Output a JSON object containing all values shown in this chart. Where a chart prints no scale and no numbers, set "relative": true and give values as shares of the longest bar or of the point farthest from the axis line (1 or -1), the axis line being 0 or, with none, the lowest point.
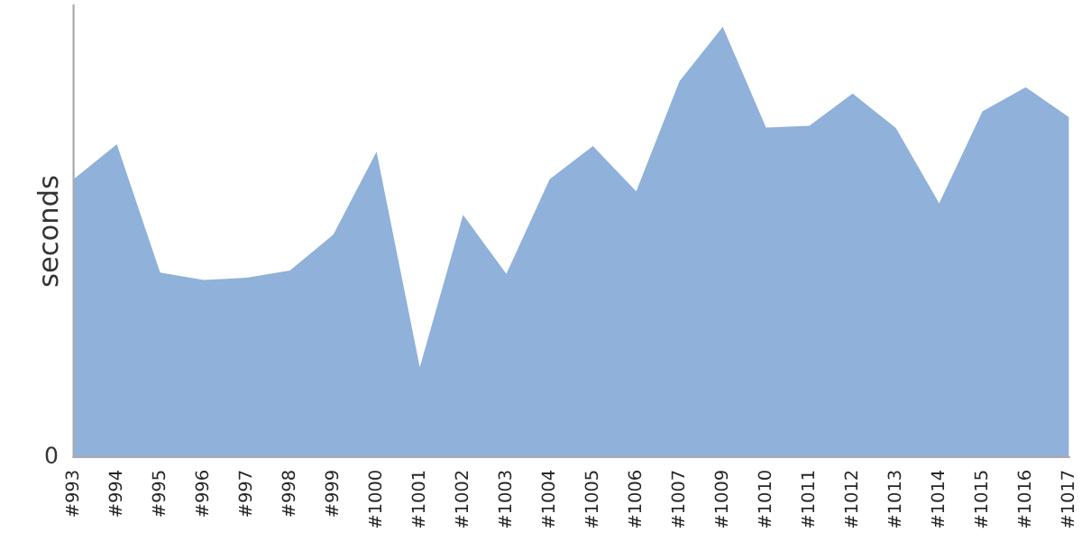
{
  "chart_data": {
    "type": "area",
    "ylabel": "seconds",
    "relative": true,
    "annotations": [
      "0"
    ],
    "categories": [
      "#993",
      "#994",
      "#995",
      "#996",
      "#997",
      "#998",
      "#999",
      "#1000",
      "#1001",
      "#1002",
      "#1003",
      "#1004",
      "#1005",
      "#1006",
      "#1007",
      "#1009",
      "#1010",
      "#1011",
      "#1012",
      "#1013",
      "#1014",
      "#1015",
      "#1016",
      "#1017"
    ],
    "series": [
      {
        "color": "#8fb1da",
        "values": [
          0.646,
          0.727,
          0.429,
          0.412,
          0.417,
          0.434,
          0.517,
          0.71,
          0.209,
          0.563,
          0.426,
          0.646,
          0.723,
          0.618,
          0.874,
          1,
          0.766,
          0.77,
          0.845,
          0.765,
          0.59,
          0.804,
          0.86,
          0.79
        ]
      }
    ],
    "grid": false,
    "legend": false
  }
}
